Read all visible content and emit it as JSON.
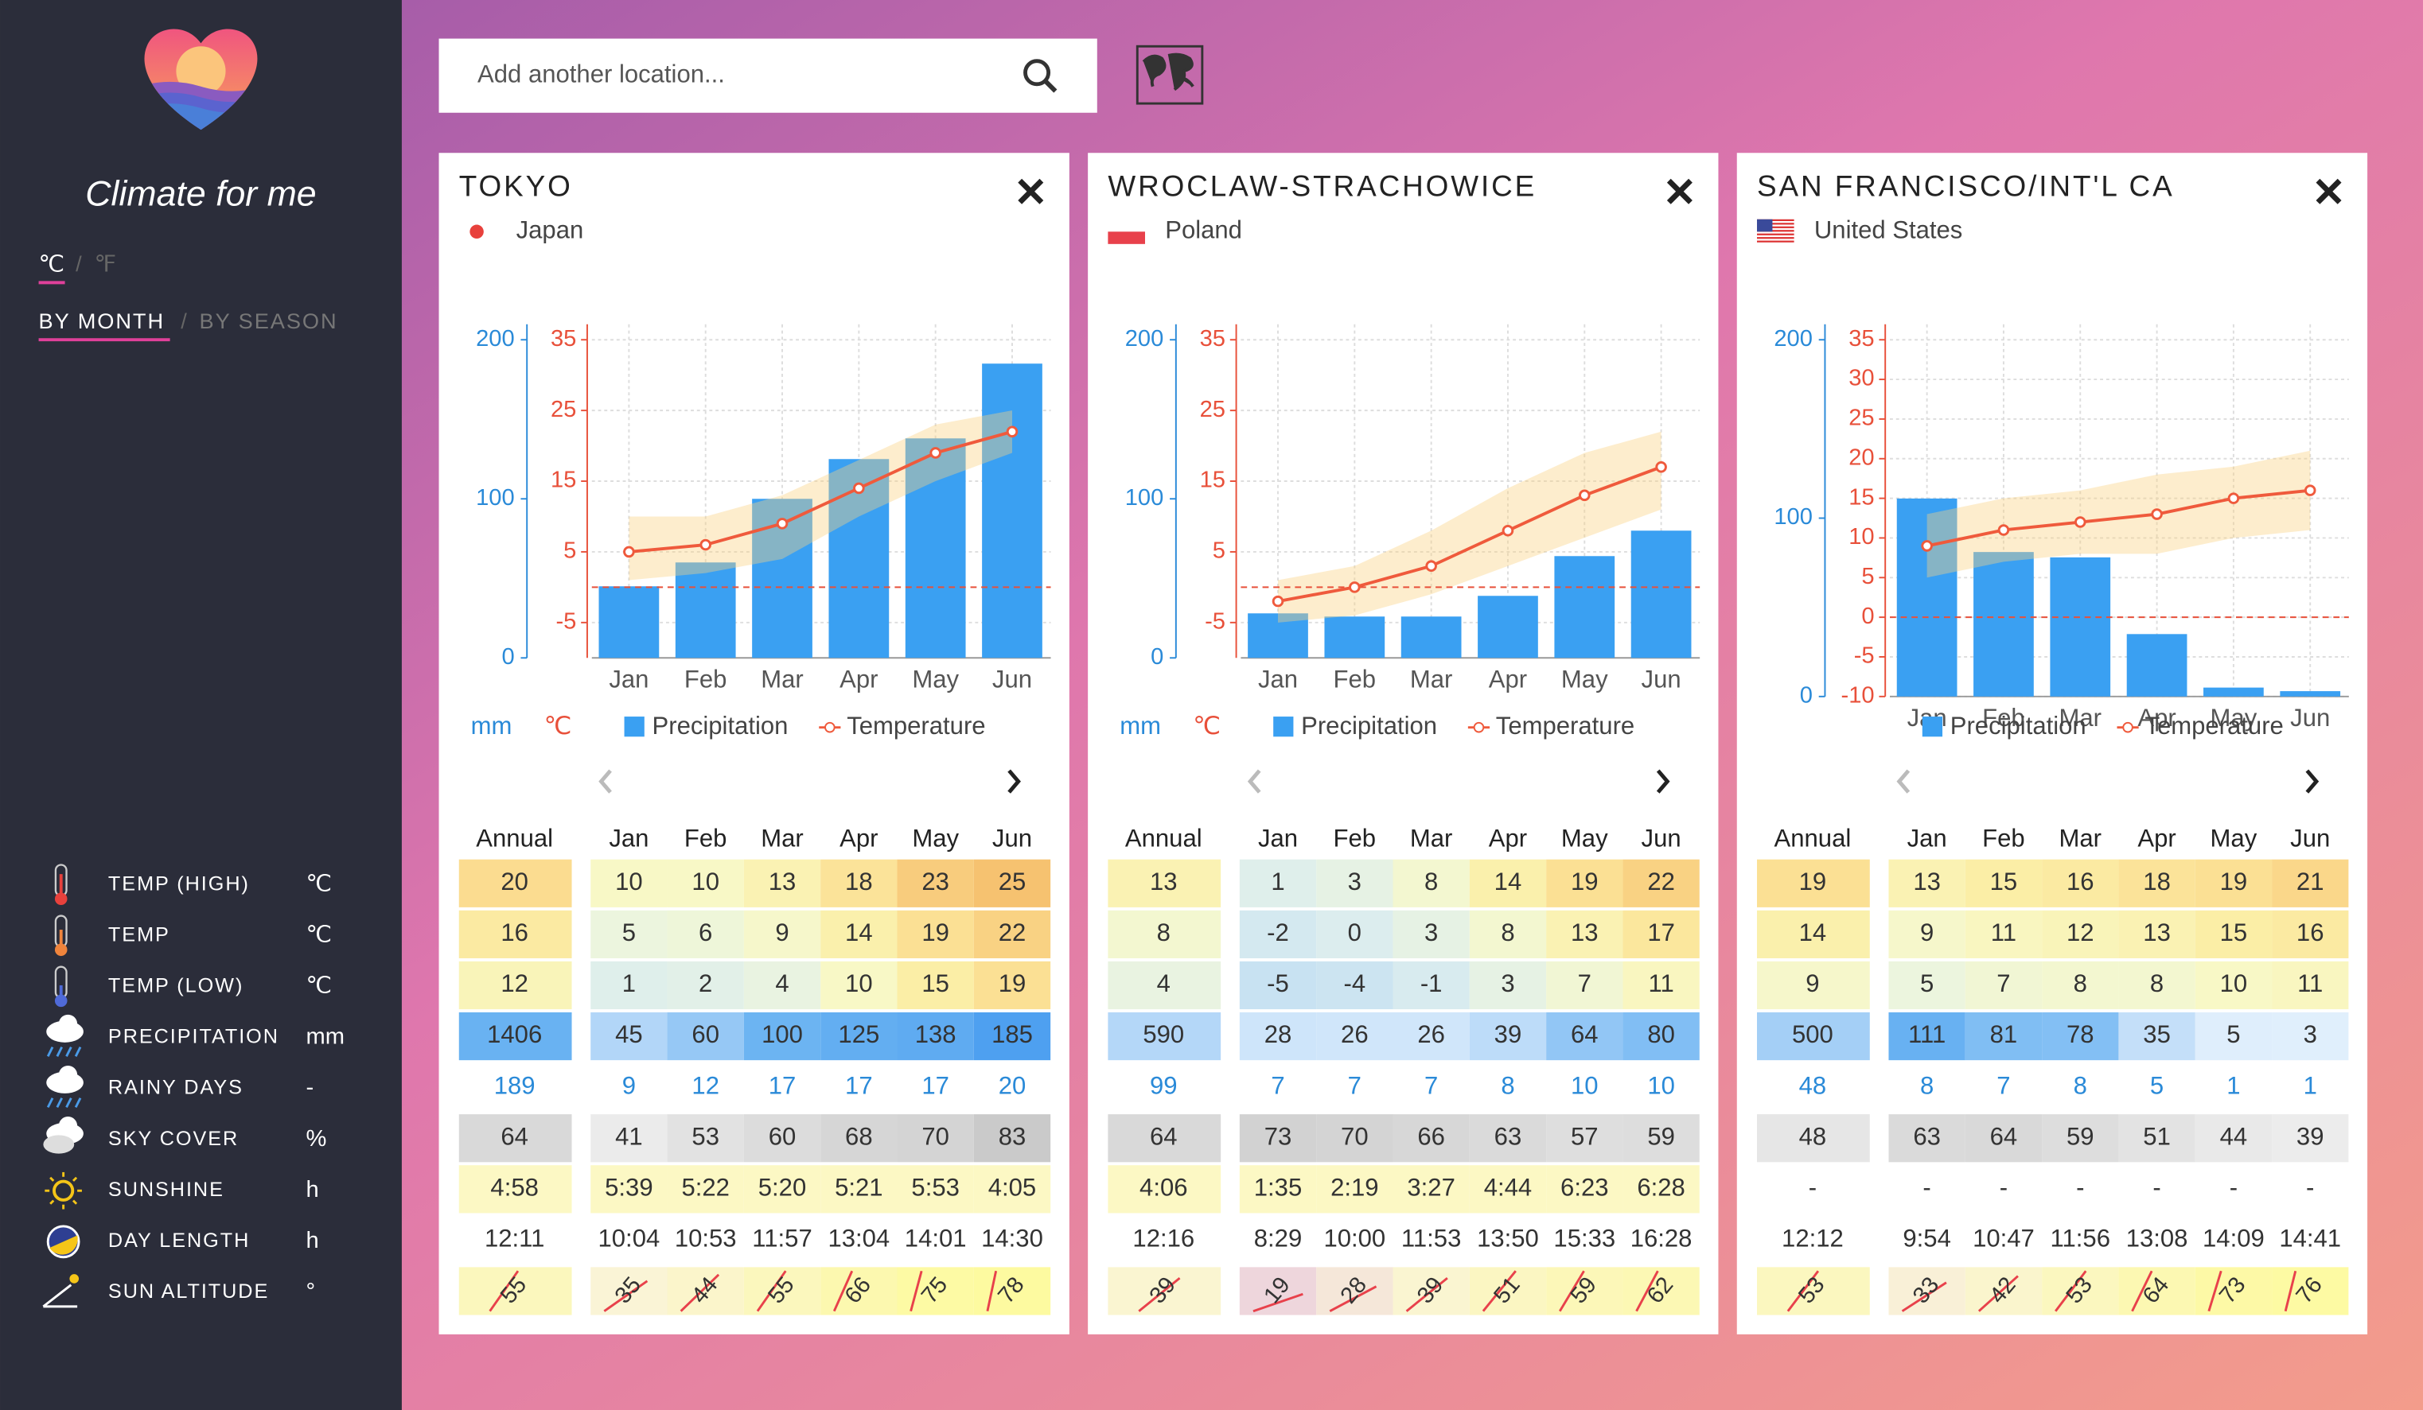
{
  "sidebar": {
    "app_name": "Climate for me",
    "units": [
      "℃",
      "℉"
    ],
    "views": [
      "BY MONTH",
      "BY SEASON"
    ],
    "separator": "/",
    "legend": [
      {
        "label": "TEMP (HIGH)",
        "unit": "℃"
      },
      {
        "label": "TEMP",
        "unit": "℃"
      },
      {
        "label": "TEMP (LOW)",
        "unit": "℃"
      },
      {
        "label": "PRECIPITATION",
        "unit": "mm"
      },
      {
        "label": "RAINY DAYS",
        "unit": "-"
      },
      {
        "label": "SKY COVER",
        "unit": "%"
      },
      {
        "label": "SUNSHINE",
        "unit": "h"
      },
      {
        "label": "DAY LENGTH",
        "unit": "h"
      },
      {
        "label": "SUN ALTITUDE",
        "unit": "°"
      }
    ]
  },
  "search": {
    "placeholder": "Add another location..."
  },
  "chart_labels": {
    "precip_unit": "mm",
    "temp_unit": "℃",
    "precip_name": "Precipitation",
    "temp_name": "Temperature"
  },
  "table_header": {
    "annual": "Annual",
    "months": [
      "Jan",
      "Feb",
      "Mar",
      "Apr",
      "May",
      "Jun"
    ]
  },
  "cards": [
    {
      "city": "TOKYO",
      "country": "Japan",
      "chart": {
        "precip_ylim": [
          0,
          200
        ],
        "precip_yticks": [
          0,
          100,
          200
        ],
        "temp_ylim": [
          -10,
          35
        ],
        "temp_yticks": [
          -5,
          5,
          15,
          25,
          35
        ]
      },
      "rows": [
        {
          "annual": 20,
          "months": [
            10,
            10,
            13,
            18,
            23,
            25
          ]
        },
        {
          "annual": 16,
          "months": [
            5,
            6,
            9,
            14,
            19,
            22
          ]
        },
        {
          "annual": 12,
          "months": [
            1,
            2,
            4,
            10,
            15,
            19
          ]
        },
        {
          "annual": 1406,
          "months": [
            45,
            60,
            100,
            125,
            138,
            185
          ]
        },
        {
          "annual": 189,
          "months": [
            9,
            12,
            17,
            17,
            17,
            20
          ]
        },
        {
          "annual": 64,
          "months": [
            41,
            53,
            60,
            68,
            70,
            83
          ]
        },
        {
          "annual": "4:58",
          "months": [
            "5:39",
            "5:22",
            "5:20",
            "5:21",
            "5:53",
            "4:05"
          ]
        },
        {
          "annual": "12:11",
          "months": [
            "10:04",
            "10:53",
            "11:57",
            "13:04",
            "14:01",
            "14:30"
          ]
        },
        {
          "annual": 55,
          "months": [
            35,
            44,
            55,
            66,
            75,
            78
          ]
        }
      ]
    },
    {
      "city": "WROCLAW-STRACHOWICE",
      "country": "Poland",
      "chart": {
        "precip_ylim": [
          0,
          200
        ],
        "precip_yticks": [
          0,
          100,
          200
        ],
        "temp_ylim": [
          -10,
          35
        ],
        "temp_yticks": [
          -5,
          5,
          15,
          25,
          35
        ]
      },
      "rows": [
        {
          "annual": 13,
          "months": [
            1,
            3,
            8,
            14,
            19,
            22
          ]
        },
        {
          "annual": 8,
          "months": [
            -2,
            0,
            3,
            8,
            13,
            17
          ]
        },
        {
          "annual": 4,
          "months": [
            -5,
            -4,
            -1,
            3,
            7,
            11
          ]
        },
        {
          "annual": 590,
          "months": [
            28,
            26,
            26,
            39,
            64,
            80
          ]
        },
        {
          "annual": 99,
          "months": [
            7,
            7,
            7,
            8,
            10,
            10
          ]
        },
        {
          "annual": 64,
          "months": [
            73,
            70,
            66,
            63,
            57,
            59
          ]
        },
        {
          "annual": "4:06",
          "months": [
            "1:35",
            "2:19",
            "3:27",
            "4:44",
            "6:23",
            "6:28"
          ]
        },
        {
          "annual": "12:16",
          "months": [
            "8:29",
            "10:00",
            "11:53",
            "13:50",
            "15:33",
            "16:28"
          ]
        },
        {
          "annual": 39,
          "months": [
            19,
            28,
            39,
            51,
            59,
            62
          ]
        }
      ]
    },
    {
      "city": "SAN FRANCISCO/INT'L CA",
      "country": "United States",
      "chart": {
        "precip_ylim": [
          0,
          200
        ],
        "precip_yticks": [
          0,
          100,
          200
        ],
        "temp_ylim": [
          -10,
          35
        ],
        "temp_yticks": [
          -10,
          -5,
          0,
          5,
          10,
          15,
          20,
          25,
          30,
          35
        ]
      },
      "rows": [
        {
          "annual": 19,
          "months": [
            13,
            15,
            16,
            18,
            19,
            21
          ]
        },
        {
          "annual": 14,
          "months": [
            9,
            11,
            12,
            13,
            15,
            16
          ]
        },
        {
          "annual": 9,
          "months": [
            5,
            7,
            8,
            8,
            10,
            11
          ]
        },
        {
          "annual": 500,
          "months": [
            111,
            81,
            78,
            35,
            5,
            3
          ]
        },
        {
          "annual": 48,
          "months": [
            8,
            7,
            8,
            5,
            1,
            1
          ]
        },
        {
          "annual": 48,
          "months": [
            63,
            64,
            59,
            51,
            44,
            39
          ]
        },
        {
          "annual": "-",
          "months": [
            "-",
            "-",
            "-",
            "-",
            "-",
            "-"
          ]
        },
        {
          "annual": "12:12",
          "months": [
            "9:54",
            "10:47",
            "11:56",
            "13:08",
            "14:09",
            "14:41"
          ]
        },
        {
          "annual": 53,
          "months": [
            33,
            42,
            53,
            64,
            73,
            76
          ]
        }
      ]
    }
  ]
}
